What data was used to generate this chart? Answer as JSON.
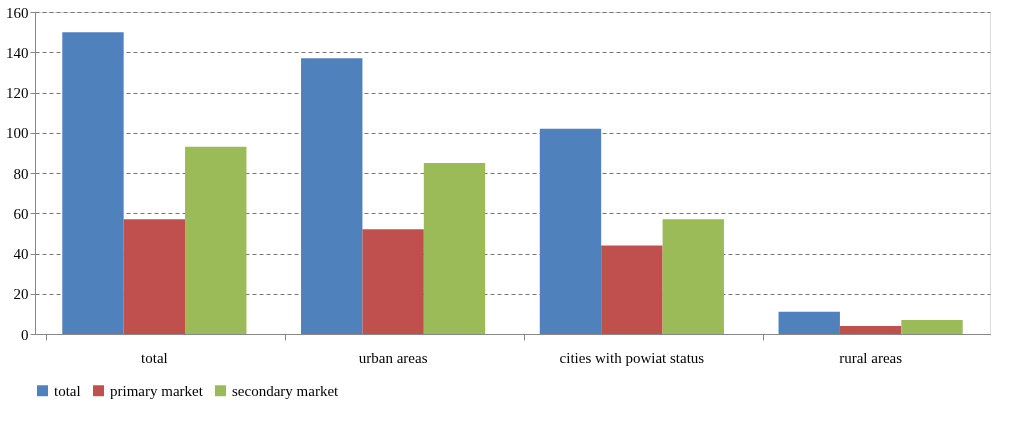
{
  "chart_data": {
    "type": "bar",
    "categories": [
      "total",
      "urban areas",
      "cities with powiat status",
      "rural areas"
    ],
    "series": [
      {
        "name": "total",
        "color": "#4f81bd",
        "values": [
          150,
          137,
          102,
          11
        ]
      },
      {
        "name": "primary market",
        "color": "#c0504d",
        "values": [
          57,
          52,
          44,
          4
        ]
      },
      {
        "name": "secondary market",
        "color": "#9bbb59",
        "values": [
          93,
          85,
          57,
          7
        ]
      }
    ],
    "ylim": [
      0,
      160
    ],
    "yticks": [
      0,
      20,
      40,
      60,
      80,
      100,
      120,
      140,
      160
    ],
    "grid": "y",
    "legend": "bottom"
  }
}
